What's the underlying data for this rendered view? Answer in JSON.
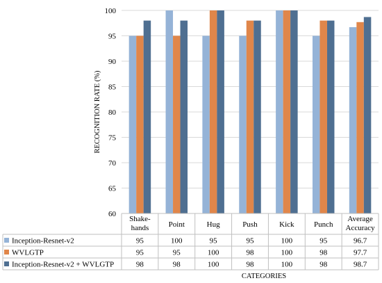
{
  "chart_data": {
    "type": "bar",
    "ylabel": "RECOGNITION RATE (%)",
    "xlabel": "CATEGORIES",
    "ylim": [
      60,
      100
    ],
    "yticks": [
      60,
      65,
      70,
      75,
      80,
      85,
      90,
      95,
      100
    ],
    "grid": true,
    "legend": "table-rows",
    "categories": [
      "Shake-hands",
      "Point",
      "Hug",
      "Push",
      "Kick",
      "Punch",
      "Average Accuracy"
    ],
    "category_lines": [
      [
        "Shake-",
        "hands"
      ],
      [
        "Point"
      ],
      [
        "Hug"
      ],
      [
        "Push"
      ],
      [
        "Kick"
      ],
      [
        "Punch"
      ],
      [
        "Average",
        "Accuracy"
      ]
    ],
    "series": [
      {
        "name": "Inception-Resnet-v2",
        "color": "#95b3d7",
        "values": [
          95,
          100,
          95,
          95,
          100,
          95,
          96.7
        ]
      },
      {
        "name": "WVLGTP",
        "color": "#e0864a",
        "values": [
          95,
          95,
          100,
          98,
          100,
          98,
          97.7
        ]
      },
      {
        "name": "Inception-Resnet-v2 + WVLGTP",
        "color": "#4f6f91",
        "values": [
          98,
          98,
          100,
          98,
          100,
          98,
          98.7
        ]
      }
    ],
    "table_values": [
      [
        "95",
        "100",
        "95",
        "95",
        "100",
        "95",
        "96.7"
      ],
      [
        "95",
        "95",
        "100",
        "98",
        "100",
        "98",
        "97.7"
      ],
      [
        "98",
        "98",
        "100",
        "98",
        "100",
        "98",
        "98.7"
      ]
    ]
  }
}
